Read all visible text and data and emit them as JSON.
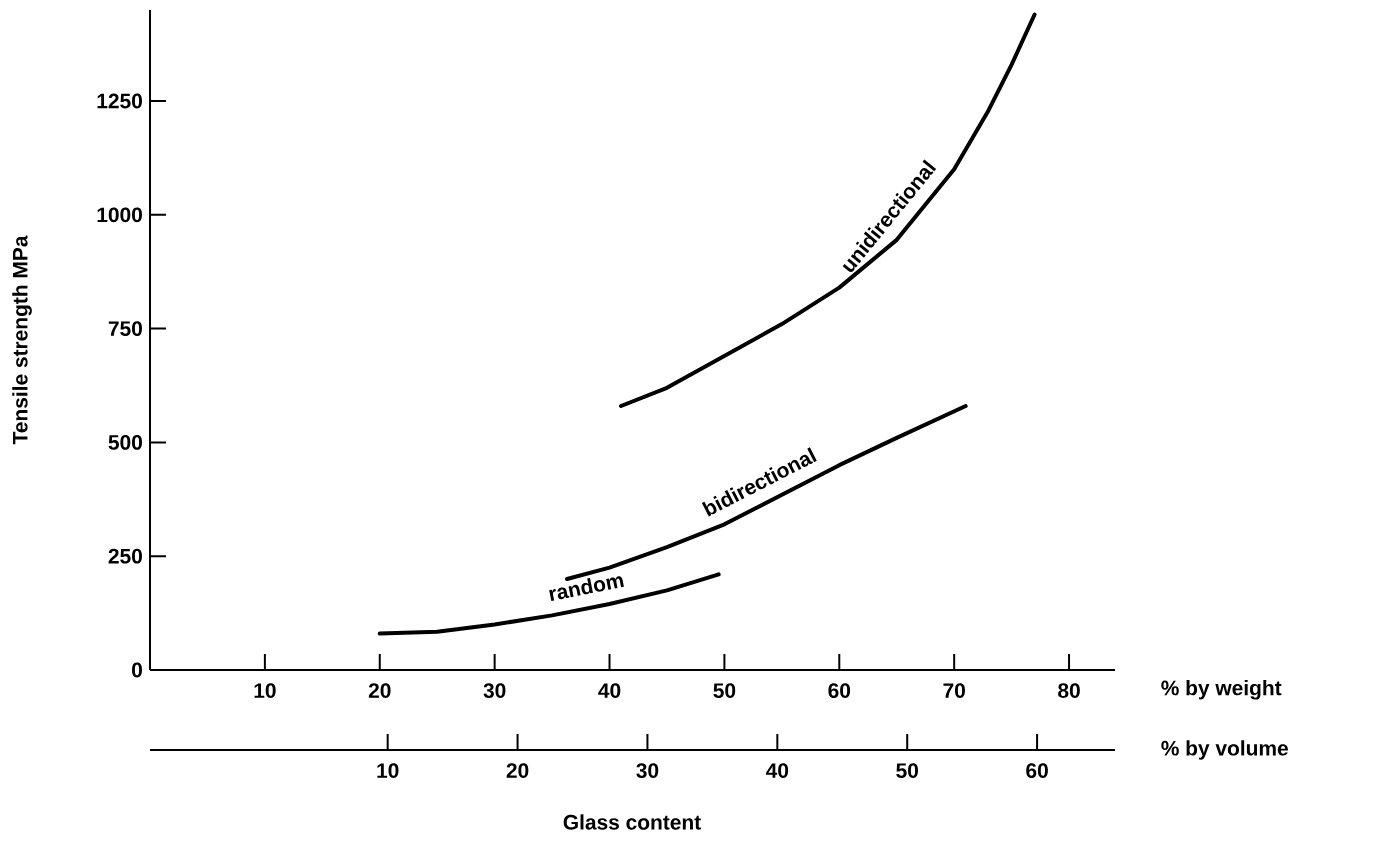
{
  "chart_data": {
    "type": "line",
    "ylabel": "Tensile strength MPa",
    "xlabel": "% by weight",
    "x2label": "% by volume",
    "annotations": [
      "Glass content"
    ],
    "xlim": [
      0,
      84
    ],
    "ylim": [
      0,
      1450
    ],
    "xticks": [
      10,
      20,
      30,
      40,
      50,
      60,
      70,
      80
    ],
    "yticks": [
      0,
      250,
      500,
      750,
      1000,
      1250
    ],
    "x2lim": [
      -8.3,
      66
    ],
    "x2ticks": [
      10,
      20,
      30,
      40,
      50,
      60
    ],
    "marker": "none",
    "line_style": "solid",
    "series": [
      {
        "name": "random",
        "color": "#000000",
        "x": [
          20,
          25,
          30,
          35,
          40,
          45,
          49.5
        ],
        "values": [
          80,
          84,
          100,
          120,
          145,
          175,
          210
        ]
      },
      {
        "name": "bidirectional",
        "color": "#000000",
        "x": [
          36.3,
          40,
          45,
          50,
          55,
          60,
          65,
          71
        ],
        "values": [
          200,
          225,
          270,
          320,
          385,
          450,
          510,
          580
        ]
      },
      {
        "name": "unidirectional",
        "color": "#000000",
        "x": [
          41,
          45,
          50,
          55,
          60,
          65,
          70,
          73,
          75,
          77
        ],
        "values": [
          580,
          620,
          690,
          760,
          840,
          945,
          1100,
          1230,
          1330,
          1440
        ]
      }
    ]
  }
}
